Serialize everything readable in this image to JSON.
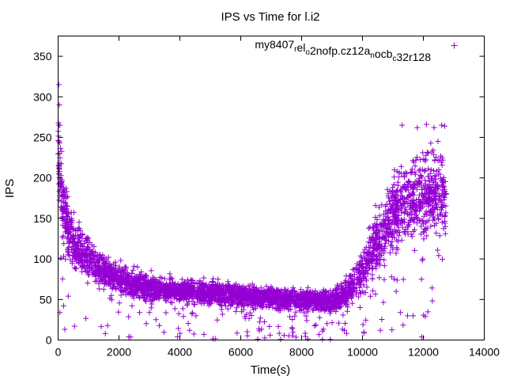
{
  "chart_data": {
    "type": "scatter",
    "title": "IPS vs Time for l.i2",
    "xlabel": "Time(s)",
    "ylabel": "IPS",
    "xlim": [
      0,
      14000
    ],
    "ylim": [
      0,
      375
    ],
    "x_ticks": [
      0,
      2000,
      4000,
      6000,
      8000,
      10000,
      12000,
      14000
    ],
    "y_ticks": [
      0,
      50,
      100,
      150,
      200,
      250,
      300,
      350
    ],
    "grid": false,
    "legend_position": "top-right",
    "marker": "plus",
    "series": [
      {
        "name": "my8407_rel_o2nofp.cz12a_nocb_c32r128",
        "legend_parts": [
          {
            "text": "my8407",
            "sub": false
          },
          {
            "text": "r",
            "sub": true
          },
          {
            "text": "el",
            "sub": false
          },
          {
            "text": "o",
            "sub": true
          },
          {
            "text": "2nofp.cz12a",
            "sub": false
          },
          {
            "text": "n",
            "sub": true
          },
          {
            "text": "ocb",
            "sub": false
          },
          {
            "text": "c",
            "sub": true
          },
          {
            "text": "32r128",
            "sub": false
          }
        ],
        "color": "#9400d3",
        "x_range": [
          0,
          12750
        ],
        "trend": [
          [
            0,
            240
          ],
          [
            100,
            190
          ],
          [
            200,
            160
          ],
          [
            400,
            130
          ],
          [
            700,
            112
          ],
          [
            1000,
            100
          ],
          [
            1500,
            85
          ],
          [
            2000,
            75
          ],
          [
            3000,
            65
          ],
          [
            4000,
            60
          ],
          [
            6000,
            55
          ],
          [
            8000,
            50
          ],
          [
            9000,
            48
          ],
          [
            9400,
            55
          ],
          [
            9800,
            75
          ],
          [
            10200,
            100
          ],
          [
            10600,
            130
          ],
          [
            11000,
            160
          ],
          [
            11500,
            175
          ],
          [
            12000,
            180
          ],
          [
            12750,
            180
          ]
        ],
        "spread": [
          [
            0,
            50
          ],
          [
            1000,
            25
          ],
          [
            2000,
            20
          ],
          [
            4000,
            15
          ],
          [
            9000,
            14
          ],
          [
            9500,
            20
          ],
          [
            10200,
            35
          ],
          [
            11000,
            50
          ],
          [
            12000,
            55
          ],
          [
            12750,
            55
          ]
        ],
        "outliers": [
          [
            20,
            315
          ],
          [
            40,
            290
          ],
          [
            60,
            265
          ],
          [
            11300,
            265
          ],
          [
            11800,
            262
          ],
          [
            12100,
            266
          ],
          [
            12350,
            262
          ],
          [
            12600,
            265
          ],
          [
            12700,
            264
          ]
        ]
      }
    ]
  }
}
